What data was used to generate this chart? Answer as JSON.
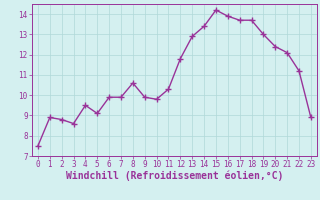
{
  "x": [
    0,
    1,
    2,
    3,
    4,
    5,
    6,
    7,
    8,
    9,
    10,
    11,
    12,
    13,
    14,
    15,
    16,
    17,
    18,
    19,
    20,
    21,
    22,
    23
  ],
  "y": [
    7.5,
    8.9,
    8.8,
    8.6,
    9.5,
    9.1,
    9.9,
    9.9,
    10.6,
    9.9,
    9.8,
    10.3,
    11.8,
    12.9,
    13.4,
    14.2,
    13.9,
    13.7,
    13.7,
    13.0,
    12.4,
    12.1,
    11.2,
    8.9
  ],
  "line_color": "#993399",
  "marker": "+",
  "marker_size": 4,
  "line_width": 1.0,
  "xlabel": "Windchill (Refroidissement éolien,°C)",
  "xlabel_fontsize": 7,
  "ylabel": "",
  "ylim": [
    7,
    14.5
  ],
  "xlim": [
    -0.5,
    23.5
  ],
  "yticks": [
    7,
    8,
    9,
    10,
    11,
    12,
    13,
    14
  ],
  "xticks": [
    0,
    1,
    2,
    3,
    4,
    5,
    6,
    7,
    8,
    9,
    10,
    11,
    12,
    13,
    14,
    15,
    16,
    17,
    18,
    19,
    20,
    21,
    22,
    23
  ],
  "xtick_labels": [
    "0",
    "1",
    "2",
    "3",
    "4",
    "5",
    "6",
    "7",
    "8",
    "9",
    "10",
    "11",
    "12",
    "13",
    "14",
    "15",
    "16",
    "17",
    "18",
    "19",
    "20",
    "21",
    "22",
    "23"
  ],
  "tick_fontsize": 5.5,
  "bg_color": "#d4f0f0",
  "grid_color": "#b0d8d8",
  "grid_linewidth": 0.5,
  "spine_color": "#993399"
}
